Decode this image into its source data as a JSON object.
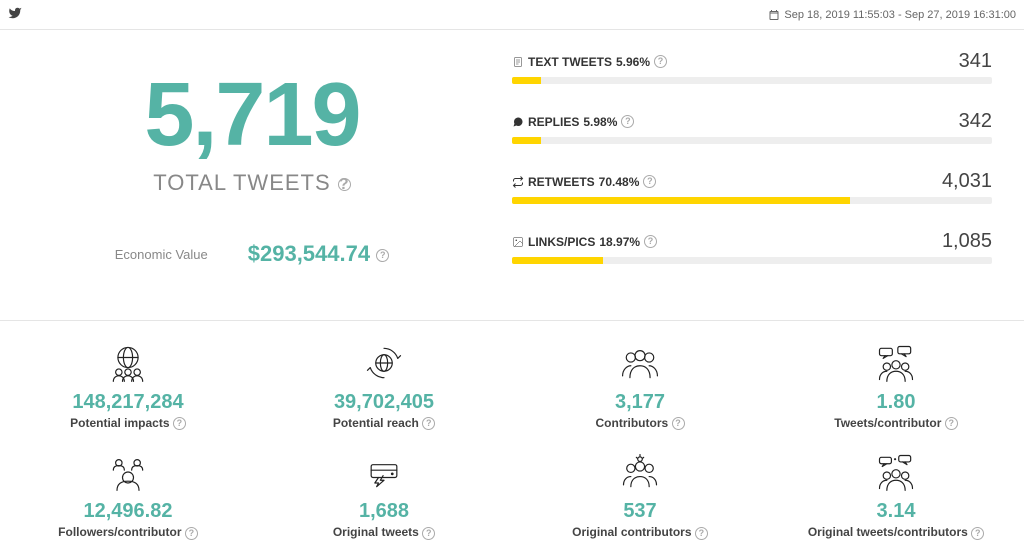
{
  "colors": {
    "accent": "#55b3a5",
    "bar_fill": "#ffd500",
    "bar_bg": "#eeeeee",
    "text_muted": "#888888",
    "divider": "#e5e5e5"
  },
  "header": {
    "date_range": "Sep 18, 2019 11:55:03 - Sep 27, 2019 16:31:00"
  },
  "totals": {
    "tweets_value": "5,719",
    "tweets_label": "TOTAL TWEETS",
    "econ_label": "Economic Value",
    "econ_value": "$293,544.74"
  },
  "breakdown": [
    {
      "icon": "file",
      "label": "TEXT TWEETS",
      "percent_text": "5.96%",
      "percent": 5.96,
      "value": "341"
    },
    {
      "icon": "comment",
      "label": "REPLIES",
      "percent_text": "5.98%",
      "percent": 5.98,
      "value": "342"
    },
    {
      "icon": "retweet",
      "label": "RETWEETS",
      "percent_text": "70.48%",
      "percent": 70.48,
      "value": "4,031"
    },
    {
      "icon": "image",
      "label": "LINKS/PICS",
      "percent_text": "18.97%",
      "percent": 18.97,
      "value": "1,085"
    }
  ],
  "metrics": [
    {
      "icon": "globe-group",
      "value": "148,217,284",
      "label": "Potential impacts"
    },
    {
      "icon": "globe-cycle",
      "value": "39,702,405",
      "label": "Potential reach"
    },
    {
      "icon": "group",
      "value": "3,177",
      "label": "Contributors"
    },
    {
      "icon": "group-bubbles",
      "value": "1.80",
      "label": "Tweets/contributor"
    },
    {
      "icon": "group-ring",
      "value": "12,496.82",
      "label": "Followers/contributor"
    },
    {
      "icon": "card-arrow",
      "value": "1,688",
      "label": "Original tweets"
    },
    {
      "icon": "group-star",
      "value": "537",
      "label": "Original contributors"
    },
    {
      "icon": "group-bubbles-star",
      "value": "3.14",
      "label": "Original tweets/contributors"
    }
  ]
}
